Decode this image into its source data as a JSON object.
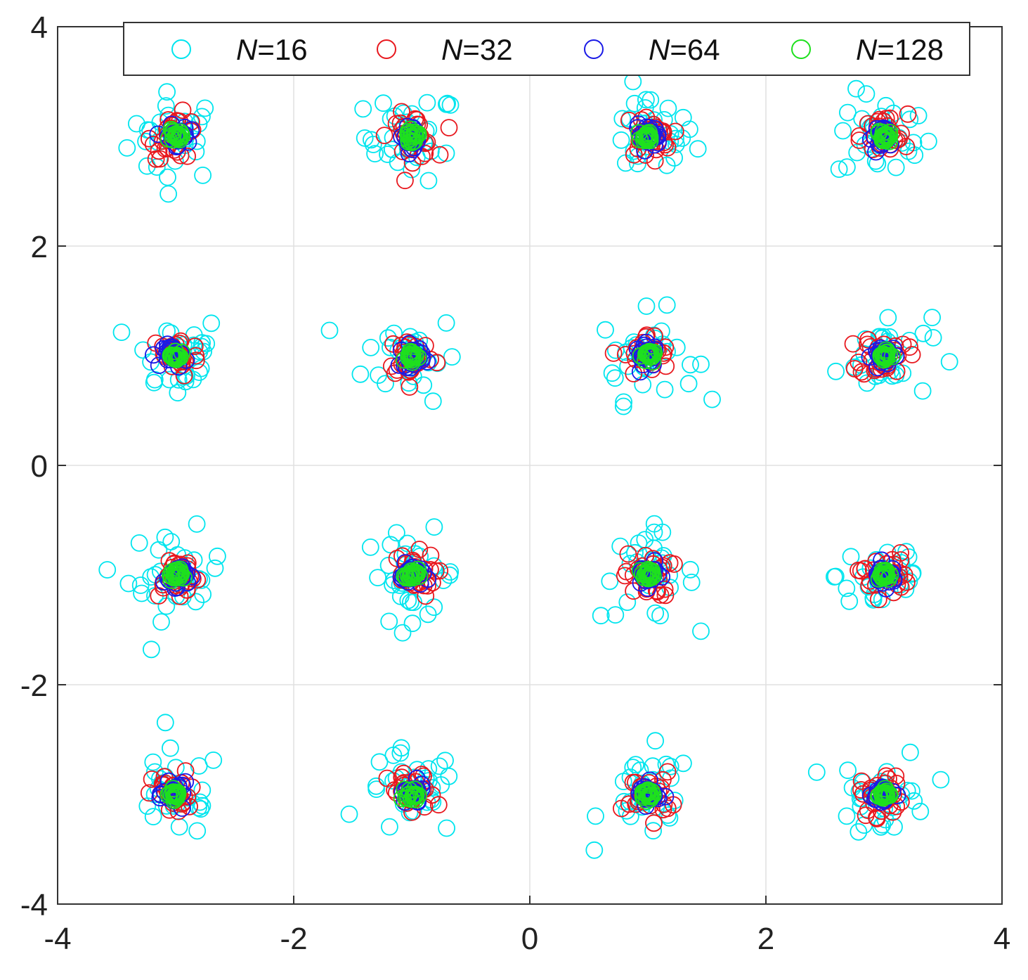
{
  "chart_data": {
    "type": "scatter",
    "title": "",
    "xlabel": "",
    "ylabel": "",
    "xlim": [
      -4,
      4
    ],
    "ylim": [
      -4,
      4
    ],
    "xticks": [
      "-4",
      "-2",
      "0",
      "2",
      "4"
    ],
    "yticks": [
      "-4",
      "-2",
      "0",
      "2",
      "4"
    ],
    "xtick_values": [
      -4,
      -2,
      0,
      2,
      4
    ],
    "ytick_values": [
      -4,
      -2,
      0,
      2,
      4
    ],
    "grid": true,
    "legend_position": "top",
    "marker": "open-circle",
    "centers": [
      [
        -3,
        3
      ],
      [
        -1,
        3
      ],
      [
        1,
        3
      ],
      [
        3,
        3
      ],
      [
        -3,
        1
      ],
      [
        -1,
        1
      ],
      [
        1,
        1
      ],
      [
        3,
        1
      ],
      [
        -3,
        -1
      ],
      [
        -1,
        -1
      ],
      [
        1,
        -1
      ],
      [
        3,
        -1
      ],
      [
        -3,
        -3
      ],
      [
        -1,
        -3
      ],
      [
        1,
        -3
      ],
      [
        3,
        -3
      ]
    ],
    "series": [
      {
        "name": "N=16",
        "label_italic": "N",
        "label_rest": "=16",
        "color": "#00e5ee",
        "spread": 0.2,
        "points_per_cluster": 30
      },
      {
        "name": "N=32",
        "label_italic": "N",
        "label_rest": "=32",
        "color": "#e8181e",
        "spread": 0.1,
        "points_per_cluster": 30
      },
      {
        "name": "N=64",
        "label_italic": "N",
        "label_rest": "=64",
        "color": "#1a1ae6",
        "spread": 0.05,
        "points_per_cluster": 25
      },
      {
        "name": "N=128",
        "label_italic": "N",
        "label_rest": "=128",
        "color": "#1ee01e",
        "spread": 0.025,
        "points_per_cluster": 20
      }
    ]
  }
}
